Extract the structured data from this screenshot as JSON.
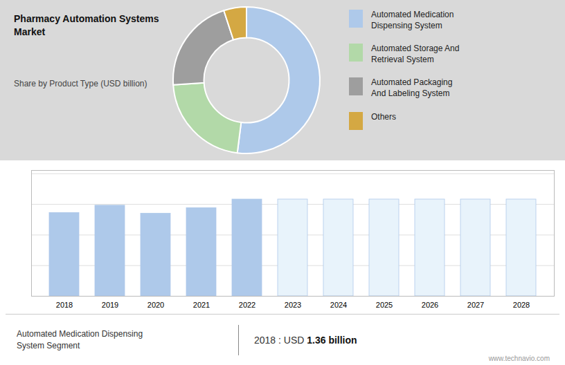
{
  "chart_data": [
    {
      "type": "pie",
      "title": "Pharmacy Automation Systems\nMarket",
      "subtitle": "Share by Product Type (USD billion)",
      "categories": [
        "Automated Medication\nDispensing System",
        "Automated Storage And\nRetrieval System",
        "Automated Packaging\nAnd Labeling System",
        "Others"
      ],
      "values": [
        52,
        22,
        21,
        5
      ],
      "colors": [
        "#aec9ea",
        "#b2d9a8",
        "#9e9e9e",
        "#d4a843"
      ],
      "legend": "right"
    },
    {
      "type": "bar",
      "categories": [
        "2018",
        "2019",
        "2020",
        "2021",
        "2022",
        "2023",
        "2024",
        "2025",
        "2026",
        "2027",
        "2028"
      ],
      "values": [
        1.36,
        1.48,
        1.35,
        1.44,
        1.58,
        1.58,
        1.58,
        1.58,
        1.58,
        1.58,
        1.58
      ],
      "color": "#aec9ea",
      "colors": [
        "#aec9ea",
        "#aec9ea",
        "#aec9ea",
        "#aec9ea",
        "#aec9ea",
        "#e8f3fb",
        "#e8f3fb",
        "#e8f3fb",
        "#e8f3fb",
        "#e8f3fb",
        "#e8f3fb"
      ],
      "ylim": [
        0,
        2.054
      ],
      "yticks": [
        0,
        0.5,
        1,
        1.5,
        2
      ],
      "grid": true,
      "tick_labels": "x",
      "annotations": [
        "Automated Medication Dispensing\nSystem Segment",
        "2018 : USD ",
        "1.36 billion",
        "www.technavio.com"
      ]
    }
  ]
}
